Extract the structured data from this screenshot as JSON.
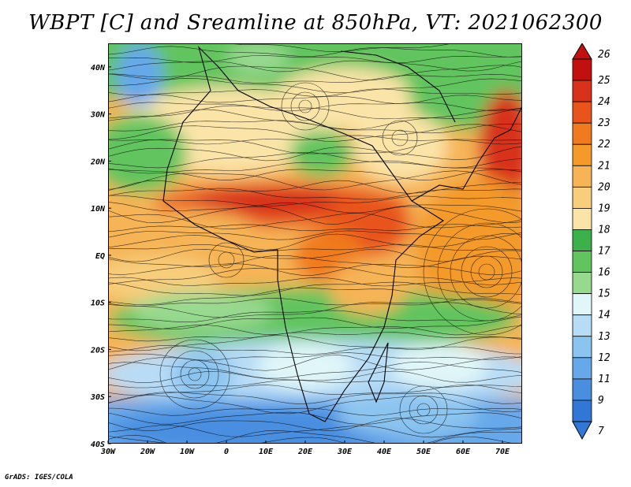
{
  "title": "WBPT [C] and Sreamline at 850hPa, VT: 2021062300",
  "credit": "GrADS: IGES/COLA",
  "map": {
    "lon_labels": [
      "30W",
      "20W",
      "10W",
      "0",
      "10E",
      "20E",
      "30E",
      "40E",
      "50E",
      "60E",
      "70E"
    ],
    "lat_labels": [
      "40N",
      "30N",
      "20N",
      "10N",
      "EQ",
      "10S",
      "20S",
      "30S",
      "40S"
    ],
    "lon_range": [
      -30,
      75
    ],
    "lat_range": [
      -40,
      45
    ]
  },
  "colorbar": {
    "labels": [
      "26",
      "25",
      "24",
      "23",
      "22",
      "21",
      "20",
      "19",
      "18",
      "17",
      "16",
      "15",
      "14",
      "13",
      "12",
      "11",
      "9",
      "7"
    ],
    "colors": [
      "#c01010",
      "#d8321c",
      "#e8541c",
      "#f07a1e",
      "#f39a2a",
      "#f6b456",
      "#f8cd7c",
      "#fbe4a8",
      "#3cb04a",
      "#62c45e",
      "#98d990",
      "#e0f6f8",
      "#b8dcf6",
      "#8cc4f0",
      "#66a8ea",
      "#4a8ee0",
      "#3276d6"
    ]
  }
}
